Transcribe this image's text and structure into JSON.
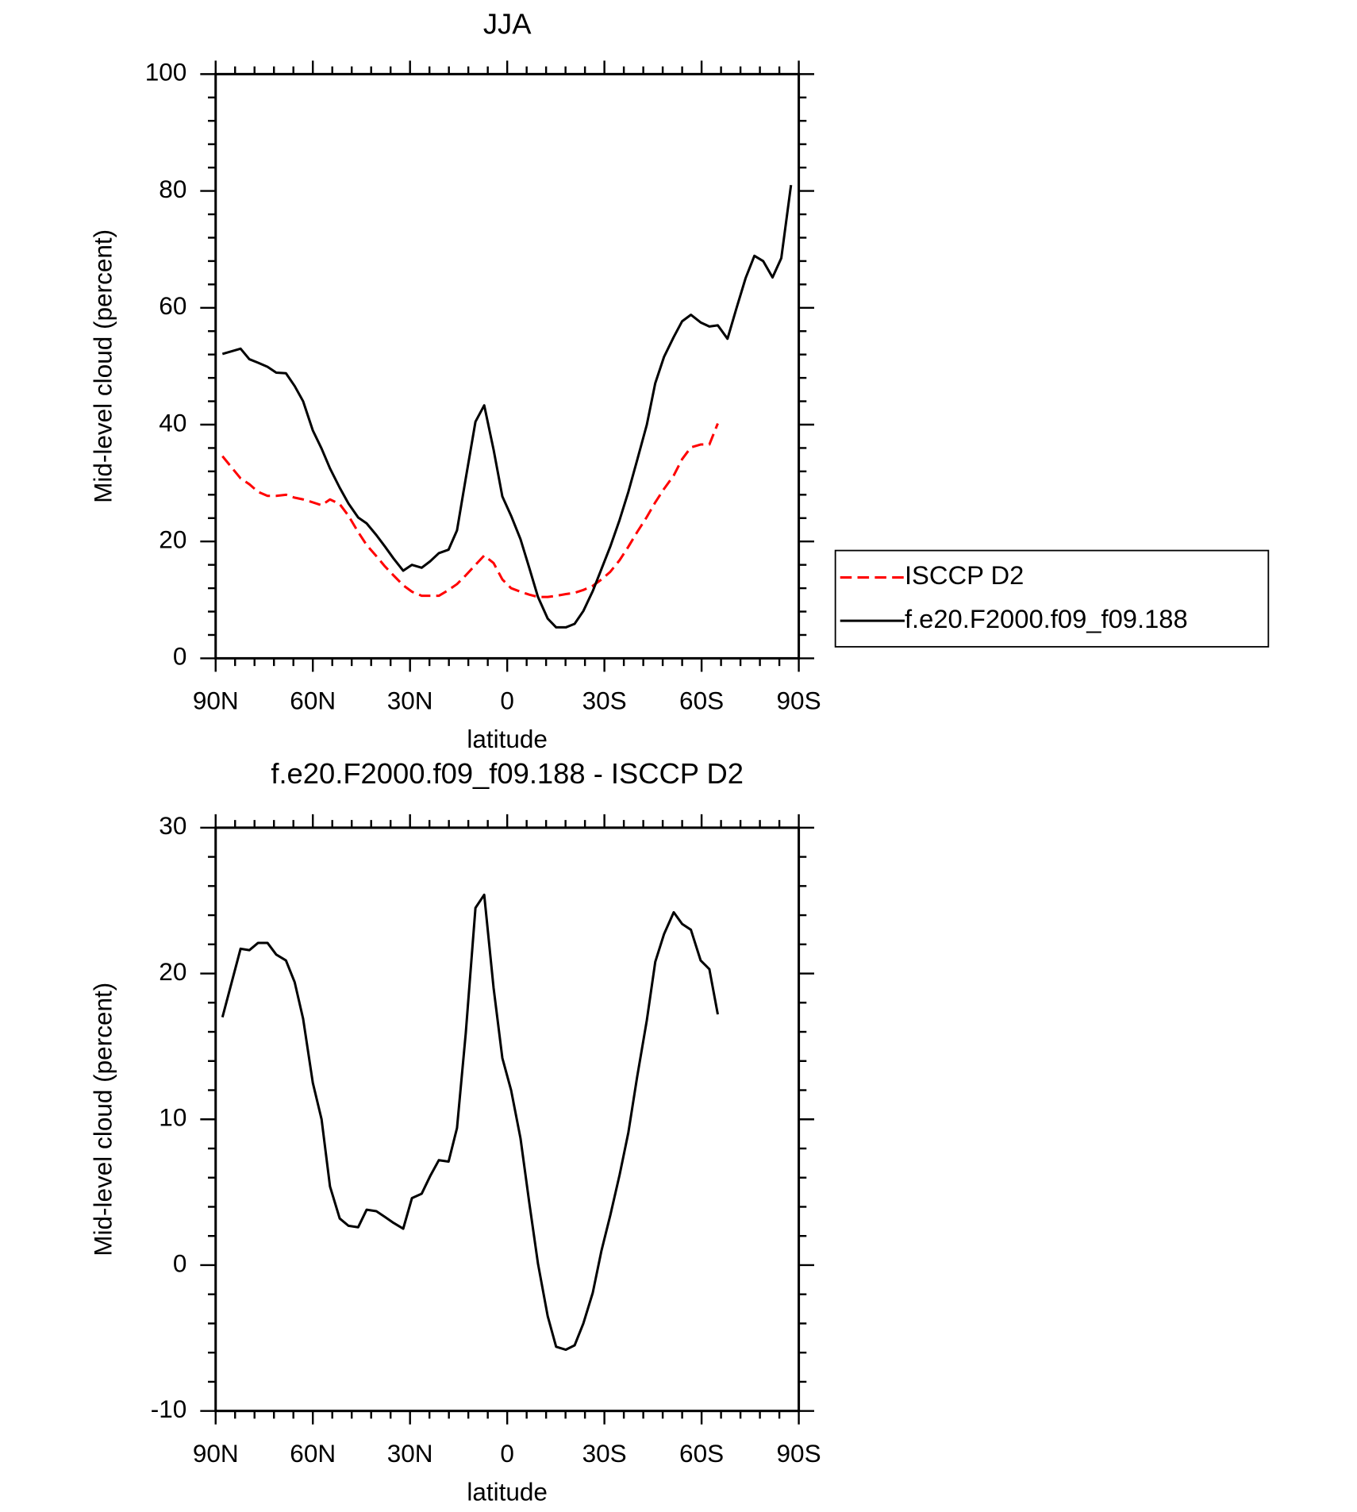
{
  "chart_data": [
    {
      "type": "line",
      "title": "JJA",
      "xlabel": "latitude",
      "ylabel": "Mid-level cloud (percent)",
      "xlim": [
        90,
        -90
      ],
      "ylim": [
        0,
        100
      ],
      "xticks": [
        {
          "value": 90,
          "label": "90N"
        },
        {
          "value": 60,
          "label": "60N"
        },
        {
          "value": 30,
          "label": "30N"
        },
        0,
        {
          "value": -30,
          "label": "30S"
        },
        {
          "value": -60,
          "label": "60S"
        },
        {
          "value": -90,
          "label": "90S"
        }
      ],
      "yticks": [
        0,
        20,
        40,
        60,
        80,
        100
      ],
      "legend": "right",
      "x": [
        87.9,
        82.3,
        79.6,
        76.9,
        74.0,
        71.3,
        68.3,
        65.6,
        63.0,
        60.0,
        57.3,
        54.7,
        51.7,
        49.0,
        46.0,
        43.4,
        40.4,
        37.7,
        35.1,
        32.1,
        29.4,
        26.4,
        23.8,
        21.1,
        18.1,
        15.5,
        12.8,
        9.8,
        7.1,
        4.2,
        1.5,
        -1.2,
        -4.1,
        -6.8,
        -9.5,
        -12.5,
        -15.1,
        -18.1,
        -20.8,
        -23.5,
        -26.4,
        -29.1,
        -31.8,
        -34.7,
        -37.4,
        -40.1,
        -43.1,
        -45.7,
        -48.4,
        -51.4,
        -54.0,
        -56.7,
        -59.7,
        -62.4,
        -65.0,
        -68.0,
        -70.7,
        -73.6,
        -76.3,
        -79.0,
        -81.9,
        -84.6,
        -87.6
      ],
      "series": [
        {
          "name": "ISCCP D2",
          "color": "#ff0000",
          "dashed": true,
          "values": [
            34.6,
            30.8,
            29.8,
            28.5,
            27.8,
            27.8,
            28.0,
            27.5,
            27.2,
            26.7,
            26.2,
            27.2,
            26.4,
            24.4,
            21.6,
            19.4,
            17.5,
            15.7,
            14.2,
            12.5,
            11.4,
            10.7,
            10.7,
            10.7,
            11.7,
            12.7,
            14.2,
            16.0,
            17.6,
            16.3,
            13.5,
            12.0,
            11.4,
            10.9,
            10.5,
            10.5,
            10.7,
            11.0,
            11.2,
            11.7,
            12.4,
            13.5,
            14.8,
            16.8,
            19.1,
            21.6,
            24.2,
            26.7,
            29.0,
            31.3,
            34.1,
            36.1,
            36.6,
            36.6,
            40.2,
            null,
            null,
            null,
            null,
            null,
            null,
            null,
            null
          ]
        },
        {
          "name": "f.e20.F2000.f09_f09.188",
          "color": "#000000",
          "dashed": false,
          "values": [
            52.1,
            53.0,
            51.2,
            50.6,
            49.9,
            48.9,
            48.8,
            46.6,
            44.0,
            39.0,
            35.9,
            32.5,
            29.2,
            26.5,
            24.1,
            23.1,
            21.1,
            19.1,
            17.1,
            15.0,
            16.0,
            15.5,
            16.6,
            18.0,
            18.6,
            21.9,
            30.8,
            40.5,
            43.3,
            35.7,
            27.7,
            24.4,
            20.4,
            15.5,
            10.5,
            6.8,
            5.3,
            5.3,
            5.9,
            8.1,
            11.5,
            15.3,
            19.1,
            23.7,
            28.5,
            33.9,
            40.0,
            47.1,
            51.6,
            55.0,
            57.7,
            58.8,
            57.5,
            56.8,
            57.0,
            54.7,
            59.8,
            65.1,
            68.9,
            68.0,
            65.2,
            68.5,
            81.0
          ]
        }
      ]
    },
    {
      "type": "line",
      "title": "f.e20.F2000.f09_f09.188 - ISCCP D2",
      "xlabel": "latitude",
      "ylabel": "Mid-level cloud (percent)",
      "xlim": [
        90,
        -90
      ],
      "ylim": [
        -10,
        30
      ],
      "xticks": [
        {
          "value": 90,
          "label": "90N"
        },
        {
          "value": 60,
          "label": "60N"
        },
        {
          "value": 30,
          "label": "30N"
        },
        0,
        {
          "value": -30,
          "label": "30S"
        },
        {
          "value": -60,
          "label": "60S"
        },
        {
          "value": -90,
          "label": "90S"
        }
      ],
      "yticks": [
        -10,
        0,
        10,
        20,
        30
      ],
      "x": [
        87.9,
        82.3,
        79.6,
        76.9,
        74.0,
        71.3,
        68.3,
        65.6,
        63.0,
        60.0,
        57.3,
        54.7,
        51.7,
        49.0,
        46.0,
        43.4,
        40.4,
        37.7,
        35.1,
        32.1,
        29.4,
        26.4,
        23.8,
        21.1,
        18.1,
        15.5,
        12.8,
        9.8,
        7.1,
        4.2,
        1.5,
        -1.2,
        -4.1,
        -6.8,
        -9.5,
        -12.5,
        -15.1,
        -18.1,
        -20.8,
        -23.5,
        -26.4,
        -29.1,
        -31.8,
        -34.7,
        -37.4,
        -40.1,
        -43.1,
        -45.7,
        -48.4,
        -51.4,
        -54.0,
        -56.7,
        -59.7,
        -62.4,
        -65.0,
        -68.0,
        -70.7,
        -73.6,
        -76.3,
        -79.0,
        -81.9,
        -84.6,
        -87.6
      ],
      "series": [
        {
          "color": "#000000",
          "dashed": false,
          "values": [
            17.0,
            21.7,
            21.6,
            22.1,
            22.1,
            21.3,
            20.9,
            19.4,
            16.9,
            12.5,
            10.0,
            5.4,
            3.2,
            2.7,
            2.6,
            3.8,
            3.7,
            3.3,
            2.9,
            2.5,
            4.6,
            4.9,
            6.1,
            7.2,
            7.1,
            9.4,
            15.9,
            24.5,
            25.4,
            19.0,
            14.2,
            12.0,
            8.7,
            4.3,
            0.1,
            -3.5,
            -5.6,
            -5.8,
            -5.5,
            -4.0,
            -1.9,
            1.0,
            3.4,
            6.2,
            9.1,
            12.9,
            16.8,
            20.8,
            22.7,
            24.2,
            23.4,
            23.0,
            20.9,
            20.3,
            17.2,
            null,
            null,
            null,
            null,
            null,
            null,
            null,
            null
          ]
        }
      ]
    }
  ]
}
